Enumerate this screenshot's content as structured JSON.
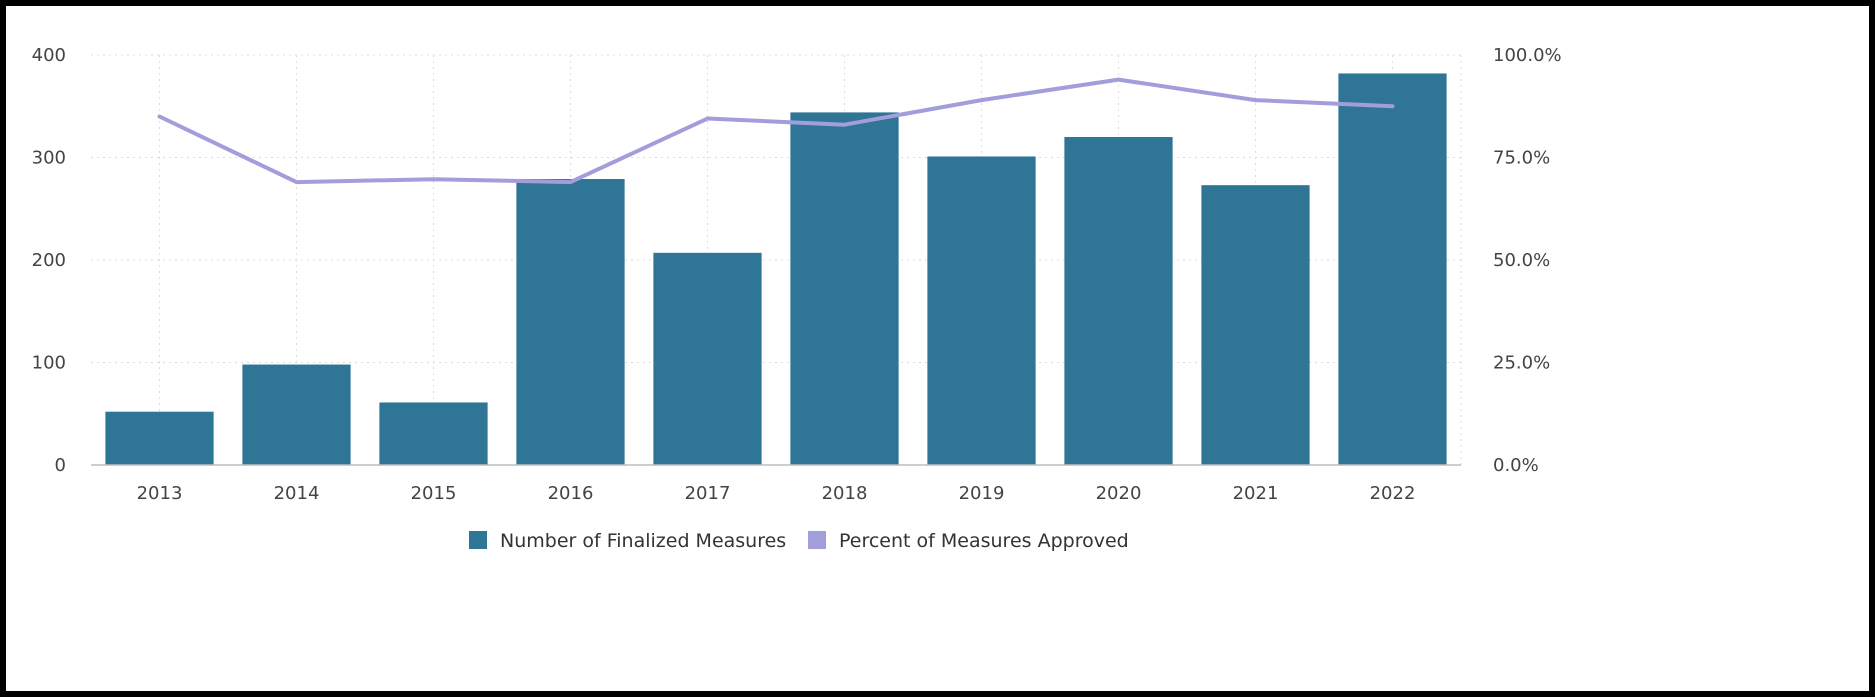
{
  "chart_data": {
    "type": "bar",
    "categories": [
      "2013",
      "2014",
      "2015",
      "2016",
      "2017",
      "2018",
      "2019",
      "2020",
      "2021",
      "2022"
    ],
    "series": [
      {
        "name": "Number of Finalized Measures",
        "type": "bar",
        "axis": "left",
        "color": "#2e7596",
        "values": [
          52,
          98,
          61,
          279,
          207,
          344,
          301,
          320,
          273,
          382
        ]
      },
      {
        "name": "Percent of Measures Approved",
        "type": "line",
        "axis": "right",
        "color": "#a29ddb",
        "values": [
          85.0,
          69.0,
          69.7,
          69.0,
          84.5,
          83.0,
          89.0,
          94.0,
          89.0,
          87.5
        ]
      }
    ],
    "y_left": {
      "min": 0,
      "max": 400,
      "ticks": [
        "0",
        "100",
        "200",
        "300",
        "400"
      ]
    },
    "y_right": {
      "min": 0,
      "max": 100,
      "ticks": [
        "0.0%",
        "25.0%",
        "50.0%",
        "75.0%",
        "100.0%"
      ]
    },
    "title": "",
    "xlabel": "",
    "ylabel": "",
    "grid": true,
    "legend_position": "bottom-center"
  }
}
